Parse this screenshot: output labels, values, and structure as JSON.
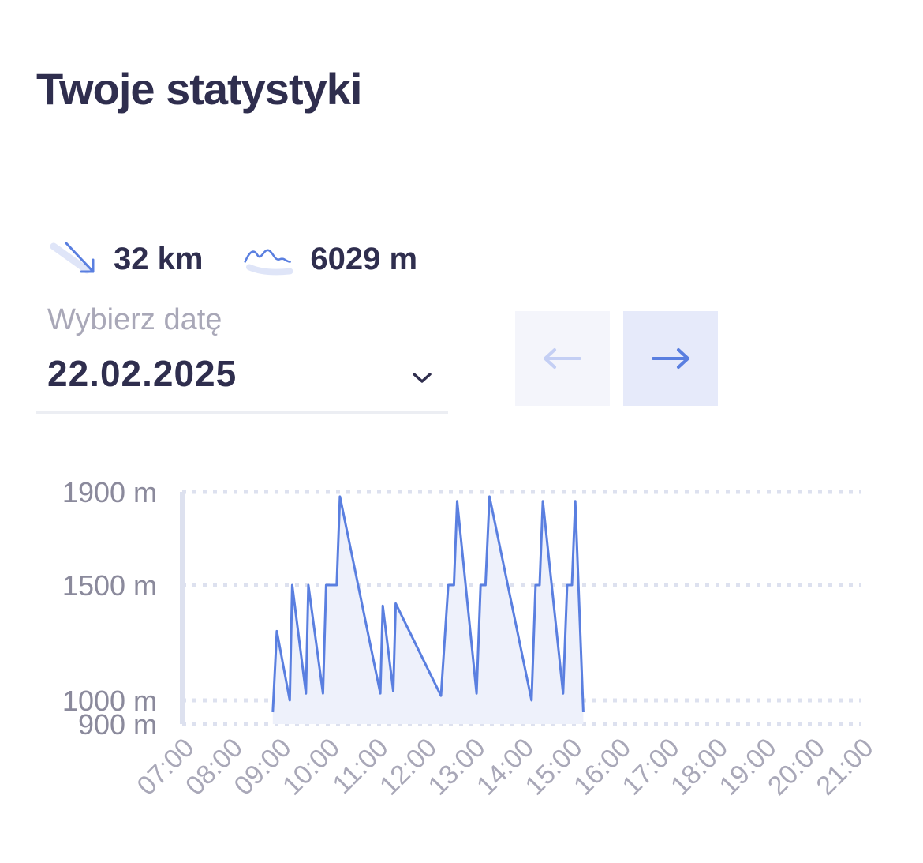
{
  "header": {
    "title": "Twoje statystyki"
  },
  "stats": {
    "distance": {
      "icon": "descent-arrow-icon",
      "value": "32 km"
    },
    "elevation": {
      "icon": "mountain-elevation-icon",
      "value": "6029 m"
    }
  },
  "date_picker": {
    "label": "Wybierz datę",
    "value": "22.02.2025"
  },
  "nav": {
    "prev": {
      "icon": "arrow-left-icon",
      "enabled": false
    },
    "next": {
      "icon": "arrow-right-icon",
      "enabled": true
    }
  },
  "colors": {
    "accent": "#5a7fe0",
    "text": "#2f2e4e",
    "muted": "#a9a8b8",
    "fill": "#eef1fb",
    "grid": "#dde1ef"
  },
  "chart_data": {
    "type": "area",
    "y_ticks": [
      {
        "label": "1900 m",
        "value": 1900
      },
      {
        "label": "1500 m",
        "value": 1500
      },
      {
        "label": "1000 m",
        "value": 1000
      },
      {
        "label": "900 m",
        "value": 900
      }
    ],
    "x_ticks": [
      "07:00",
      "08:00",
      "09:00",
      "10:00",
      "11:00",
      "12:00",
      "13:00",
      "14:00",
      "15:00",
      "16:00",
      "17:00",
      "18:00",
      "19:00",
      "20:00",
      "21:00"
    ],
    "ylim": [
      900,
      1900
    ],
    "xlim": [
      "07:00",
      "21:00"
    ],
    "grid": true,
    "series": [
      {
        "points": [
          {
            "x": "08:52",
            "y": 950
          },
          {
            "x": "08:57",
            "y": 1300
          },
          {
            "x": "09:13",
            "y": 1000
          },
          {
            "x": "09:16",
            "y": 1500
          },
          {
            "x": "09:33",
            "y": 1030
          },
          {
            "x": "09:36",
            "y": 1500
          },
          {
            "x": "09:54",
            "y": 1030
          },
          {
            "x": "09:58",
            "y": 1500
          },
          {
            "x": "10:11",
            "y": 1500
          },
          {
            "x": "10:15",
            "y": 1880
          },
          {
            "x": "11:05",
            "y": 1030
          },
          {
            "x": "11:08",
            "y": 1410
          },
          {
            "x": "11:21",
            "y": 1040
          },
          {
            "x": "11:24",
            "y": 1420
          },
          {
            "x": "12:20",
            "y": 1020
          },
          {
            "x": "12:29",
            "y": 1500
          },
          {
            "x": "12:36",
            "y": 1500
          },
          {
            "x": "12:40",
            "y": 1860
          },
          {
            "x": "13:04",
            "y": 1030
          },
          {
            "x": "13:09",
            "y": 1500
          },
          {
            "x": "13:15",
            "y": 1500
          },
          {
            "x": "13:20",
            "y": 1880
          },
          {
            "x": "14:12",
            "y": 1000
          },
          {
            "x": "14:17",
            "y": 1500
          },
          {
            "x": "14:22",
            "y": 1500
          },
          {
            "x": "14:26",
            "y": 1860
          },
          {
            "x": "14:51",
            "y": 1030
          },
          {
            "x": "14:56",
            "y": 1500
          },
          {
            "x": "15:02",
            "y": 1500
          },
          {
            "x": "15:06",
            "y": 1860
          },
          {
            "x": "15:16",
            "y": 950
          }
        ]
      }
    ]
  }
}
